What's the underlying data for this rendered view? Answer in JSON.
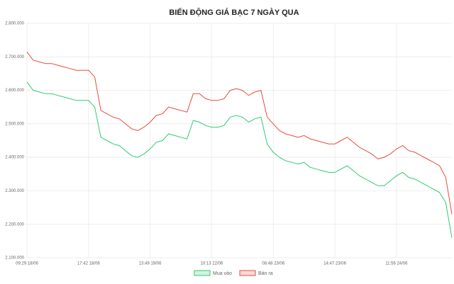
{
  "chart_data": {
    "type": "line",
    "title": "BIẾN ĐỘNG GIÁ BẠC 7 NGÀY QUA",
    "categories": [
      "09:29 18/06",
      null,
      null,
      null,
      null,
      null,
      null,
      null,
      null,
      null,
      "17:42 18/06",
      null,
      null,
      null,
      null,
      null,
      null,
      null,
      null,
      null,
      "13:49 19/06",
      null,
      null,
      null,
      null,
      null,
      null,
      null,
      null,
      null,
      "10:13 22/06",
      null,
      null,
      null,
      null,
      null,
      null,
      null,
      null,
      null,
      "08:48 23/06",
      null,
      null,
      null,
      null,
      null,
      null,
      null,
      null,
      null,
      "14:47 23/06",
      null,
      null,
      null,
      null,
      null,
      null,
      null,
      null,
      null,
      "11:56 24/06",
      null,
      null,
      null,
      null,
      null,
      null,
      null,
      null,
      null
    ],
    "series": [
      {
        "name": "Mua vào",
        "color": "#2ecc71",
        "fill": "#d4f2df",
        "values": [
          2625000,
          2600000,
          2595000,
          2590000,
          2590000,
          2585000,
          2580000,
          2575000,
          2570000,
          2570000,
          2570000,
          2550000,
          2460000,
          2450000,
          2440000,
          2435000,
          2420000,
          2405000,
          2400000,
          2410000,
          2425000,
          2445000,
          2450000,
          2470000,
          2465000,
          2460000,
          2455000,
          2510000,
          2505000,
          2495000,
          2490000,
          2490000,
          2495000,
          2520000,
          2525000,
          2520000,
          2505000,
          2515000,
          2520000,
          2440000,
          2415000,
          2400000,
          2390000,
          2385000,
          2380000,
          2385000,
          2370000,
          2365000,
          2360000,
          2355000,
          2355000,
          2365000,
          2375000,
          2360000,
          2345000,
          2335000,
          2325000,
          2315000,
          2315000,
          2330000,
          2345000,
          2355000,
          2340000,
          2335000,
          2325000,
          2315000,
          2305000,
          2295000,
          2265000,
          2160000
        ]
      },
      {
        "name": "Bán ra",
        "color": "#e74c3c",
        "fill": "#f9d9d5",
        "values": [
          2715000,
          2690000,
          2685000,
          2680000,
          2680000,
          2675000,
          2670000,
          2665000,
          2660000,
          2660000,
          2660000,
          2640000,
          2540000,
          2530000,
          2520000,
          2515000,
          2500000,
          2485000,
          2480000,
          2490000,
          2505000,
          2525000,
          2530000,
          2550000,
          2545000,
          2540000,
          2535000,
          2590000,
          2590000,
          2575000,
          2570000,
          2570000,
          2575000,
          2600000,
          2605000,
          2600000,
          2585000,
          2595000,
          2600000,
          2520000,
          2500000,
          2480000,
          2470000,
          2465000,
          2460000,
          2465000,
          2455000,
          2450000,
          2445000,
          2440000,
          2440000,
          2450000,
          2460000,
          2445000,
          2430000,
          2420000,
          2410000,
          2395000,
          2400000,
          2410000,
          2425000,
          2435000,
          2420000,
          2415000,
          2405000,
          2395000,
          2385000,
          2375000,
          2340000,
          2230000
        ]
      }
    ],
    "ylim": [
      2100000,
      2800000
    ],
    "yticks": [
      {
        "value": 2100000,
        "label": "2.100.000"
      },
      {
        "value": 2200000,
        "label": "2.200.000"
      },
      {
        "value": 2300000,
        "label": "2.300.000"
      },
      {
        "value": 2400000,
        "label": "2.400.000"
      },
      {
        "value": 2500000,
        "label": "2.500.000"
      },
      {
        "value": 2600000,
        "label": "2.600.000"
      },
      {
        "value": 2700000,
        "label": "2.700.000"
      },
      {
        "value": 2800000,
        "label": "2.800.000"
      }
    ],
    "grid": true
  }
}
